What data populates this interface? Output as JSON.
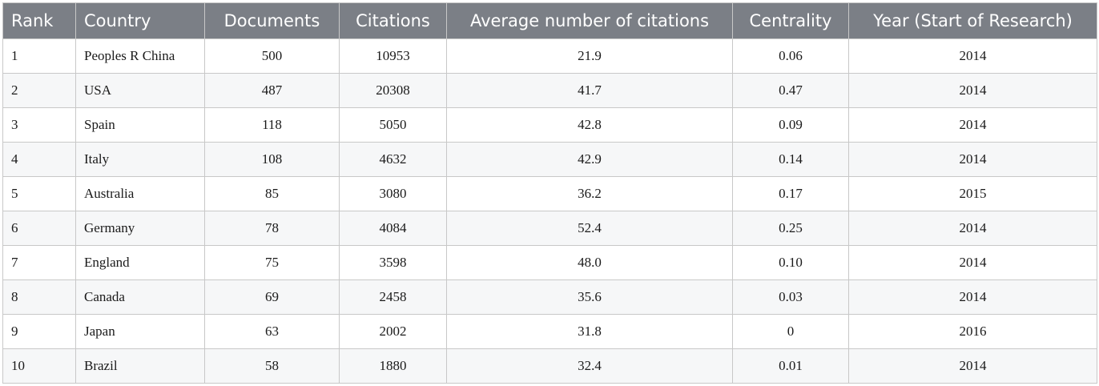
{
  "table": {
    "headers": [
      "Rank",
      "Country",
      "Documents",
      "Citations",
      "Average number of citations",
      "Centrality",
      "Year (Start of Research)"
    ],
    "rows": [
      [
        "1",
        "Peoples R China",
        "500",
        "10953",
        "21.9",
        "0.06",
        "2014"
      ],
      [
        "2",
        "USA",
        "487",
        "20308",
        "41.7",
        "0.47",
        "2014"
      ],
      [
        "3",
        "Spain",
        "118",
        "5050",
        "42.8",
        "0.09",
        "2014"
      ],
      [
        "4",
        "Italy",
        "108",
        "4632",
        "42.9",
        "0.14",
        "2014"
      ],
      [
        "5",
        "Australia",
        "85",
        "3080",
        "36.2",
        "0.17",
        "2015"
      ],
      [
        "6",
        "Germany",
        "78",
        "4084",
        "52.4",
        "0.25",
        "2014"
      ],
      [
        "7",
        "England",
        "75",
        "3598",
        "48.0",
        "0.10",
        "2014"
      ],
      [
        "8",
        "Canada",
        "69",
        "2458",
        "35.6",
        "0.03",
        "2014"
      ],
      [
        "9",
        "Japan",
        "63",
        "2002",
        "31.8",
        "0",
        "2016"
      ],
      [
        "10",
        "Brazil",
        "58",
        "1880",
        "32.4",
        "0.01",
        "2014"
      ]
    ]
  },
  "colors": {
    "header_background": "#7b7f86",
    "header_text": "#ffffff",
    "border": "#c8c8c8"
  }
}
